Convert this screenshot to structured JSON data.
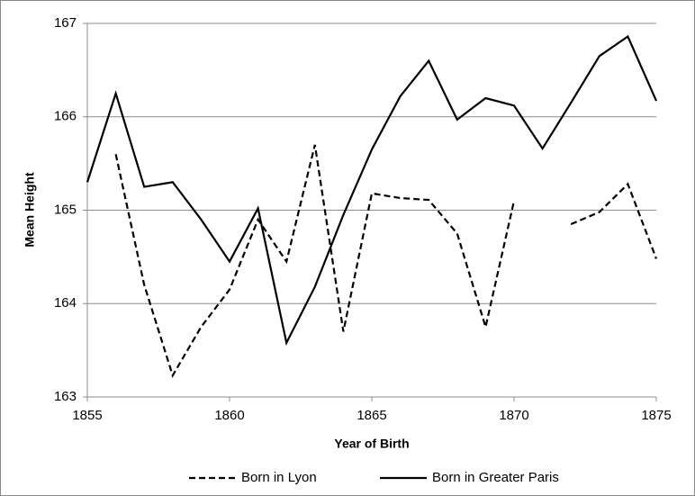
{
  "chart_data": {
    "type": "line",
    "x": [
      1855,
      1856,
      1857,
      1858,
      1859,
      1860,
      1861,
      1862,
      1863,
      1864,
      1865,
      1866,
      1867,
      1868,
      1869,
      1870,
      1871,
      1872,
      1873,
      1874,
      1875
    ],
    "series": [
      {
        "name": "Born in Lyon",
        "color": "#000000",
        "style": "dashed",
        "values": [
          null,
          165.6,
          164.2,
          163.23,
          163.75,
          164.15,
          164.9,
          164.45,
          165.7,
          163.7,
          165.18,
          165.13,
          165.11,
          164.75,
          163.75,
          165.1,
          null,
          164.85,
          164.98,
          165.28,
          164.48
        ]
      },
      {
        "name": "Born in Greater Paris",
        "color": "#000000",
        "style": "solid",
        "values": [
          165.3,
          166.25,
          165.25,
          165.3,
          164.9,
          164.45,
          165.02,
          163.58,
          164.18,
          164.95,
          165.65,
          166.22,
          166.6,
          165.97,
          166.2,
          166.12,
          165.66,
          166.15,
          166.65,
          166.86,
          166.17
        ]
      }
    ],
    "x_label": "Year of Birth",
    "y_label": "Mean Height",
    "xlim": [
      1855,
      1875
    ],
    "xticks": [
      1855,
      1860,
      1865,
      1870,
      1875
    ],
    "ylim": [
      163,
      167
    ],
    "yticks": [
      163,
      164,
      165,
      166,
      167
    ],
    "grid": true,
    "legend": "bottom"
  }
}
